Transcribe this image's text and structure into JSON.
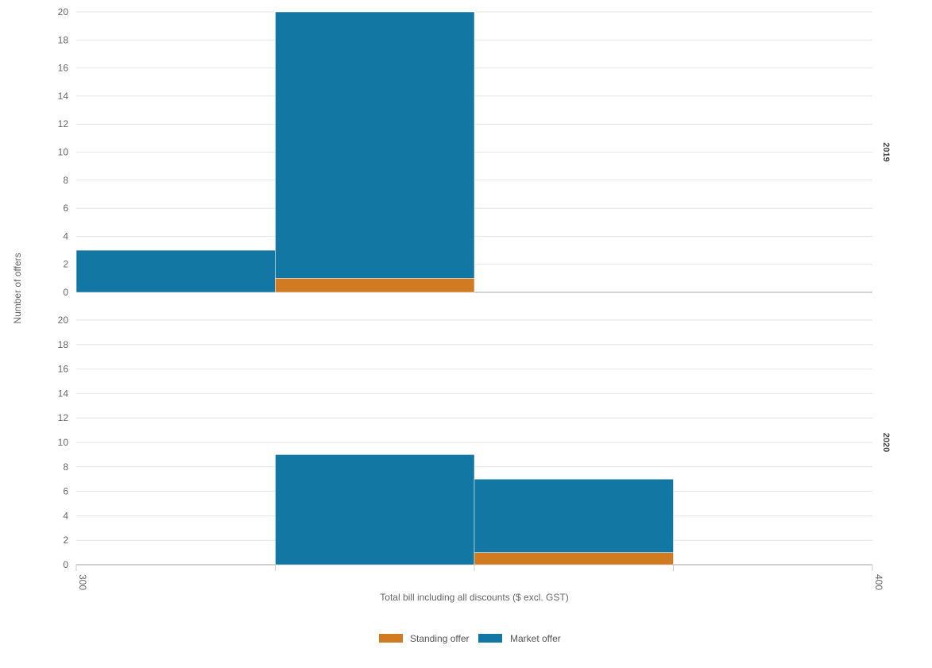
{
  "chart_data": {
    "type": "bar",
    "subtype": "stacked-histogram-faceted",
    "xlabel": "Total bill including all discounts ($ excl. GST)",
    "ylabel": "Number of offers",
    "xlim": [
      300,
      400
    ],
    "x_tick_labels": [
      "300",
      "400"
    ],
    "ylim": [
      0,
      20
    ],
    "y_ticks": [
      0,
      2,
      4,
      6,
      8,
      10,
      12,
      14,
      16,
      18,
      20
    ],
    "bins": [
      {
        "start": 300,
        "end": 325
      },
      {
        "start": 325,
        "end": 350
      },
      {
        "start": 350,
        "end": 375
      },
      {
        "start": 375,
        "end": 400
      }
    ],
    "grid": true,
    "legend_position": "bottom-center",
    "series": [
      {
        "name": "Standing offer",
        "color": "#d07a22"
      },
      {
        "name": "Market offer",
        "color": "#1277a3"
      }
    ],
    "facets": [
      {
        "label": "2019",
        "standing": [
          0,
          1,
          0,
          0
        ],
        "market": [
          3,
          19,
          0,
          0
        ]
      },
      {
        "label": "2020",
        "standing": [
          0,
          0,
          1,
          0
        ],
        "market": [
          0,
          9,
          6,
          0
        ]
      }
    ]
  }
}
